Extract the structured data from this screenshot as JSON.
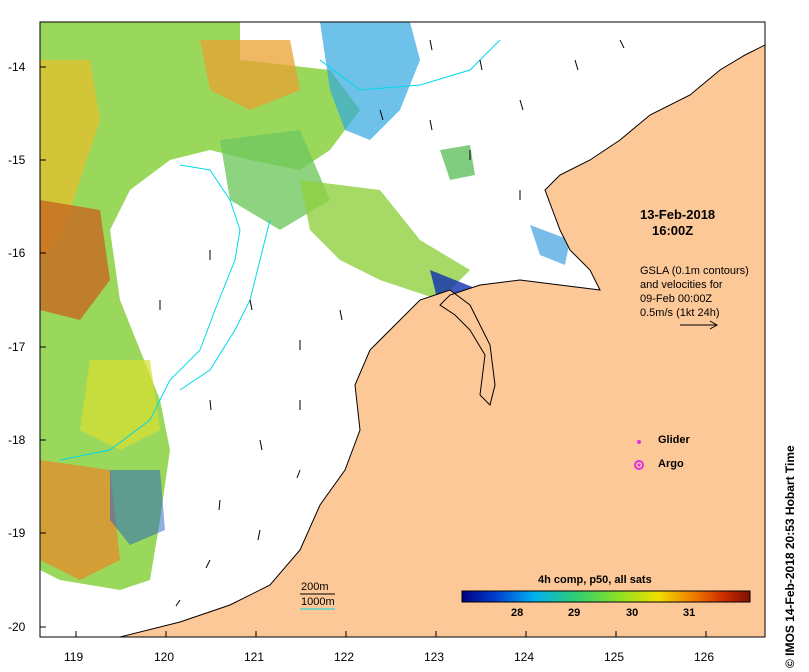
{
  "map": {
    "x_ticks": [
      "119",
      "120",
      "121",
      "122",
      "123",
      "124",
      "125",
      "126"
    ],
    "y_ticks": [
      "-14",
      "-15",
      "-16",
      "-17",
      "-18",
      "-19",
      "-20"
    ],
    "colors": {
      "land": "#fcc898",
      "sea": "#ffffff",
      "coast": "#000000",
      "contour": "#00d8e8"
    }
  },
  "annotations": {
    "date": "13-Feb-2018",
    "time": "16:00Z",
    "gsla_line1": "GSLA (0.1m contours)",
    "gsla_line2": "and velocities for",
    "gsla_line3": "09-Feb 00:00Z",
    "gsla_line4": "0.5m/s (1kt 24h)"
  },
  "legend": {
    "glider_label": "Glider",
    "argo_label": "Argo",
    "glider_color": "#e030e0",
    "argo_color": "#e030e0"
  },
  "depth": {
    "label_200": "200m",
    "label_1000": "1000m"
  },
  "colorbar": {
    "title": "4h comp, p50, all sats",
    "ticks": [
      "28",
      "29",
      "30",
      "31"
    ],
    "stops": [
      "#000080",
      "#0040d0",
      "#00b0f0",
      "#30d070",
      "#90e020",
      "#f0e000",
      "#f08000",
      "#d03000",
      "#801000"
    ]
  },
  "credit": "© IMOS 14-Feb-2018 20:53 Hobart Time"
}
